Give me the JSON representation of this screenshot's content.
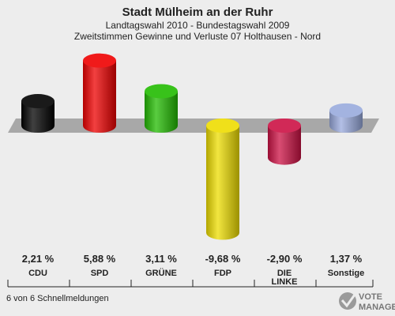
{
  "header": {
    "title": "Stadt Mülheim an der Ruhr",
    "subtitle1": "Landtagswahl 2010 - Bundestagswahl 2009",
    "subtitle2": "Zweitstimmen Gewinne und Verluste 07 Holthausen - Nord"
  },
  "footer": {
    "status": "6 von 6 Schnellmeldungen"
  },
  "logo": {
    "line1": "VOTE",
    "line2": "MANAGER"
  },
  "chart_data": {
    "type": "bar",
    "categories": [
      "CDU",
      "SPD",
      "GRÜNE",
      "FDP",
      "DIE LINKE",
      "Sonstige"
    ],
    "values": [
      2.21,
      5.88,
      3.11,
      -9.68,
      -2.9,
      1.37
    ],
    "value_labels": [
      "2,21 %",
      "5,88 %",
      "3,11 %",
      "-9,68 %",
      "-2,90 %",
      "1,37 %"
    ],
    "colors": [
      "#000000",
      "#ee0000",
      "#22bb00",
      "#eedd00",
      "#cc1144",
      "#99aadd"
    ],
    "baseline": 0,
    "grid": false,
    "legend": "none"
  }
}
